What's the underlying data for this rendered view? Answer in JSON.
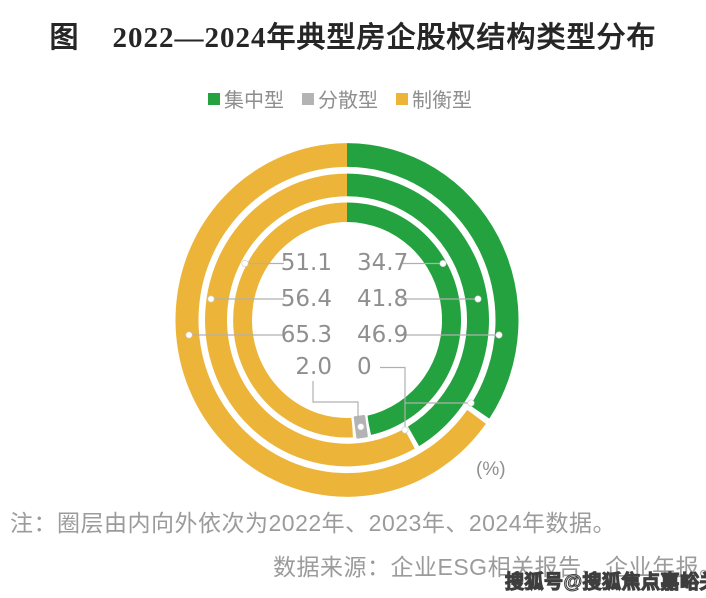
{
  "title": {
    "prefix": "图",
    "text": "2022—2024年典型房企股权结构类型分布"
  },
  "legend": [
    {
      "key": "concentrated",
      "label": "集中型",
      "color": "#23a23f"
    },
    {
      "key": "dispersed",
      "label": "分散型",
      "color": "#b3b3b3"
    },
    {
      "key": "balanced",
      "label": "制衡型",
      "color": "#ecb53a"
    }
  ],
  "chart_data": {
    "type": "pie",
    "variant": "concentric-donut",
    "unit_label": "(%)",
    "series_names": {
      "concentrated": "集中型",
      "dispersed": "分散型",
      "balanced": "制衡型"
    },
    "rings": [
      {
        "year": "2022年",
        "position": "inner",
        "values": {
          "concentrated": 46.9,
          "dispersed": 2.0,
          "balanced": 51.1
        }
      },
      {
        "year": "2023年",
        "position": "middle",
        "values": {
          "concentrated": 41.8,
          "dispersed": 0,
          "balanced": 56.4
        }
      },
      {
        "year": "2024年",
        "position": "outer",
        "values": {
          "concentrated": 34.7,
          "dispersed": 0,
          "balanced": 65.3
        }
      }
    ],
    "label_rows": [
      {
        "left": "51.1",
        "right": "34.7"
      },
      {
        "left": "56.4",
        "right": "41.8"
      },
      {
        "left": "65.3",
        "right": "46.9"
      },
      {
        "left": "2.0",
        "right": "0"
      }
    ]
  },
  "notes": {
    "line1": "注：圈层由内向外依次为2022年、2023年、2024年数据。",
    "line2": "数据来源：企业ESG相关报告、企业年报。"
  },
  "watermark": "搜狐号@搜狐焦点嘉峪关站"
}
